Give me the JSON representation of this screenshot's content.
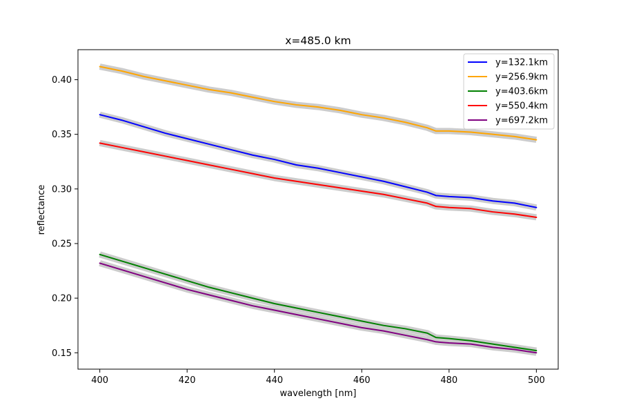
{
  "chart_data": {
    "type": "line",
    "title": "x=485.0 km",
    "xlabel": "wavelength [nm]",
    "ylabel": "reflectance",
    "xlim": [
      395,
      505
    ],
    "ylim": [
      0.135,
      0.4275
    ],
    "xticks": [
      400,
      420,
      440,
      460,
      480,
      500
    ],
    "xtick_labels": [
      "400",
      "420",
      "440",
      "460",
      "480",
      "500"
    ],
    "yticks": [
      0.15,
      0.2,
      0.25,
      0.3,
      0.35,
      0.4
    ],
    "ytick_labels": [
      "0.15",
      "0.20",
      "0.25",
      "0.30",
      "0.35",
      "0.40"
    ],
    "grid": false,
    "legend_position": "top-right",
    "uncertainty_band_color": "#cccccc",
    "series": [
      {
        "name": "y=132.1km",
        "color": "#0000ff",
        "x": [
          400,
          405,
          410,
          415,
          420,
          425,
          430,
          435,
          440,
          445,
          450,
          455,
          460,
          465,
          470,
          475,
          477,
          480,
          485,
          490,
          495,
          500
        ],
        "values": [
          0.368,
          0.363,
          0.357,
          0.351,
          0.346,
          0.341,
          0.336,
          0.331,
          0.327,
          0.322,
          0.319,
          0.315,
          0.311,
          0.307,
          0.302,
          0.297,
          0.294,
          0.293,
          0.292,
          0.289,
          0.287,
          0.283
        ]
      },
      {
        "name": "y=256.9km",
        "color": "#ffa500",
        "x": [
          400,
          405,
          410,
          415,
          420,
          425,
          430,
          435,
          440,
          445,
          450,
          455,
          460,
          465,
          470,
          475,
          477,
          480,
          485,
          490,
          495,
          500
        ],
        "values": [
          0.412,
          0.408,
          0.403,
          0.399,
          0.395,
          0.391,
          0.388,
          0.384,
          0.38,
          0.377,
          0.375,
          0.372,
          0.368,
          0.365,
          0.361,
          0.356,
          0.353,
          0.353,
          0.352,
          0.35,
          0.348,
          0.345
        ]
      },
      {
        "name": "y=403.6km",
        "color": "#008000",
        "x": [
          400,
          405,
          410,
          415,
          420,
          425,
          430,
          435,
          440,
          445,
          450,
          455,
          460,
          465,
          470,
          475,
          477,
          480,
          485,
          490,
          495,
          500
        ],
        "values": [
          0.24,
          0.234,
          0.228,
          0.222,
          0.216,
          0.21,
          0.205,
          0.2,
          0.195,
          0.191,
          0.187,
          0.183,
          0.179,
          0.175,
          0.172,
          0.168,
          0.164,
          0.163,
          0.161,
          0.158,
          0.155,
          0.152
        ]
      },
      {
        "name": "y=550.4km",
        "color": "#ff0000",
        "x": [
          400,
          405,
          410,
          415,
          420,
          425,
          430,
          435,
          440,
          445,
          450,
          455,
          460,
          465,
          470,
          475,
          477,
          480,
          485,
          490,
          495,
          500
        ],
        "values": [
          0.342,
          0.338,
          0.334,
          0.33,
          0.326,
          0.322,
          0.318,
          0.314,
          0.31,
          0.307,
          0.304,
          0.301,
          0.298,
          0.295,
          0.291,
          0.287,
          0.284,
          0.283,
          0.282,
          0.279,
          0.277,
          0.274
        ]
      },
      {
        "name": "y=697.2km",
        "color": "#800080",
        "x": [
          400,
          405,
          410,
          415,
          420,
          425,
          430,
          435,
          440,
          445,
          450,
          455,
          460,
          465,
          470,
          475,
          477,
          480,
          485,
          490,
          495,
          500
        ],
        "values": [
          0.232,
          0.226,
          0.22,
          0.214,
          0.208,
          0.203,
          0.198,
          0.193,
          0.189,
          0.185,
          0.181,
          0.177,
          0.173,
          0.17,
          0.166,
          0.162,
          0.16,
          0.159,
          0.158,
          0.155,
          0.153,
          0.15
        ]
      }
    ]
  }
}
